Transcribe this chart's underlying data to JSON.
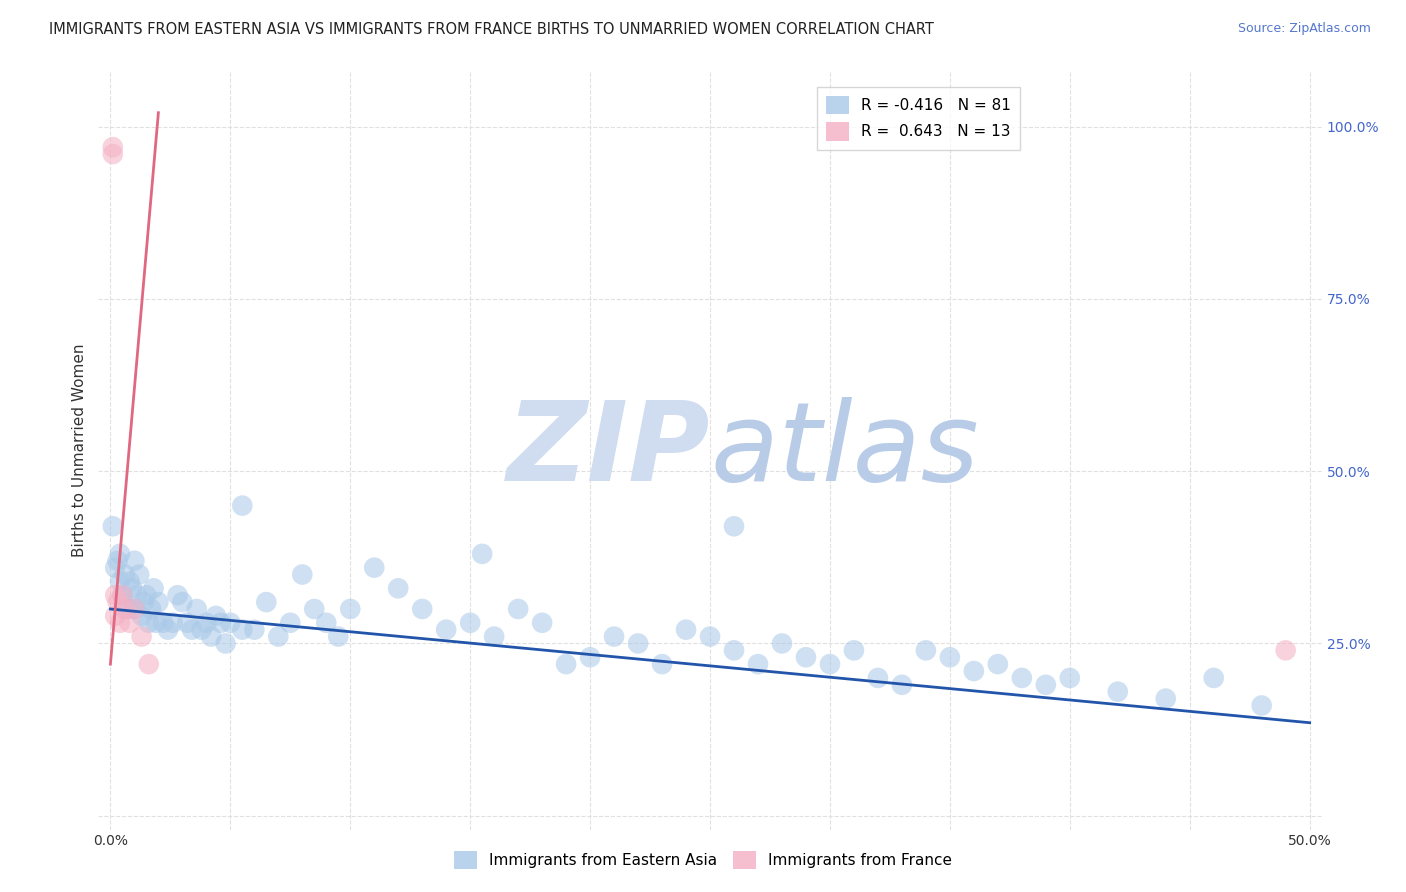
{
  "title": "IMMIGRANTS FROM EASTERN ASIA VS IMMIGRANTS FROM FRANCE BIRTHS TO UNMARRIED WOMEN CORRELATION CHART",
  "source": "Source: ZipAtlas.com",
  "ylabel": "Births to Unmarried Women",
  "xlim": [
    -0.005,
    0.505
  ],
  "ylim": [
    -0.02,
    1.08
  ],
  "xticks": [
    0.0,
    0.05,
    0.1,
    0.15,
    0.2,
    0.25,
    0.3,
    0.35,
    0.4,
    0.45,
    0.5
  ],
  "xticklabels": [
    "0.0%",
    "",
    "",
    "",
    "",
    "",
    "",
    "",
    "",
    "",
    "50.0%"
  ],
  "ytick_positions": [
    0.0,
    0.25,
    0.5,
    0.75,
    1.0
  ],
  "ytick_labels": [
    "",
    "25.0%",
    "50.0%",
    "75.0%",
    "100.0%"
  ],
  "legend_entries": [
    {
      "label": "R = -0.416   N = 81",
      "color": "#a8c8e8"
    },
    {
      "label": "R =  0.643   N = 13",
      "color": "#f4b8c8"
    }
  ],
  "blue_scatter_x": [
    0.001,
    0.002,
    0.003,
    0.004,
    0.004,
    0.005,
    0.006,
    0.007,
    0.008,
    0.009,
    0.01,
    0.01,
    0.011,
    0.012,
    0.013,
    0.014,
    0.015,
    0.016,
    0.017,
    0.018,
    0.019,
    0.02,
    0.022,
    0.024,
    0.026,
    0.028,
    0.03,
    0.032,
    0.034,
    0.036,
    0.038,
    0.04,
    0.042,
    0.044,
    0.046,
    0.048,
    0.05,
    0.055,
    0.06,
    0.065,
    0.07,
    0.075,
    0.08,
    0.085,
    0.09,
    0.095,
    0.1,
    0.11,
    0.12,
    0.13,
    0.14,
    0.15,
    0.16,
    0.17,
    0.18,
    0.19,
    0.2,
    0.21,
    0.22,
    0.23,
    0.24,
    0.25,
    0.26,
    0.27,
    0.28,
    0.29,
    0.3,
    0.31,
    0.32,
    0.33,
    0.34,
    0.35,
    0.36,
    0.37,
    0.38,
    0.39,
    0.4,
    0.42,
    0.44,
    0.46,
    0.48
  ],
  "blue_scatter_y": [
    0.42,
    0.36,
    0.37,
    0.34,
    0.38,
    0.32,
    0.35,
    0.3,
    0.34,
    0.33,
    0.37,
    0.3,
    0.32,
    0.35,
    0.29,
    0.31,
    0.32,
    0.28,
    0.3,
    0.33,
    0.28,
    0.31,
    0.28,
    0.27,
    0.28,
    0.32,
    0.31,
    0.28,
    0.27,
    0.3,
    0.27,
    0.28,
    0.26,
    0.29,
    0.28,
    0.25,
    0.28,
    0.27,
    0.27,
    0.31,
    0.26,
    0.28,
    0.35,
    0.3,
    0.28,
    0.26,
    0.3,
    0.36,
    0.33,
    0.3,
    0.27,
    0.28,
    0.26,
    0.3,
    0.28,
    0.22,
    0.23,
    0.26,
    0.25,
    0.22,
    0.27,
    0.26,
    0.24,
    0.22,
    0.25,
    0.23,
    0.22,
    0.24,
    0.2,
    0.19,
    0.24,
    0.23,
    0.21,
    0.22,
    0.2,
    0.19,
    0.2,
    0.18,
    0.17,
    0.2,
    0.16
  ],
  "blue_scatter_special": [
    [
      0.055,
      0.45
    ],
    [
      0.155,
      0.38
    ],
    [
      0.26,
      0.42
    ]
  ],
  "pink_scatter_x": [
    0.001,
    0.001,
    0.002,
    0.002,
    0.003,
    0.004,
    0.005,
    0.006,
    0.008,
    0.01,
    0.013,
    0.016,
    0.49
  ],
  "pink_scatter_y": [
    0.96,
    0.97,
    0.29,
    0.32,
    0.31,
    0.28,
    0.32,
    0.3,
    0.28,
    0.3,
    0.26,
    0.22,
    0.24
  ],
  "blue_line_x": [
    0.0,
    0.5
  ],
  "blue_line_y": [
    0.3,
    0.135
  ],
  "pink_line_x": [
    0.0,
    0.02
  ],
  "pink_line_y": [
    0.22,
    1.02
  ],
  "blue_color": "#a8c8e8",
  "pink_color": "#f4b0c4",
  "blue_line_color": "#2255aa",
  "pink_line_color": "#e06880",
  "watermark_zip_color": "#d0ddf0",
  "watermark_atlas_color": "#b8cce8",
  "background_color": "#ffffff",
  "grid_color": "#e0e0e0",
  "grid_style": "--"
}
